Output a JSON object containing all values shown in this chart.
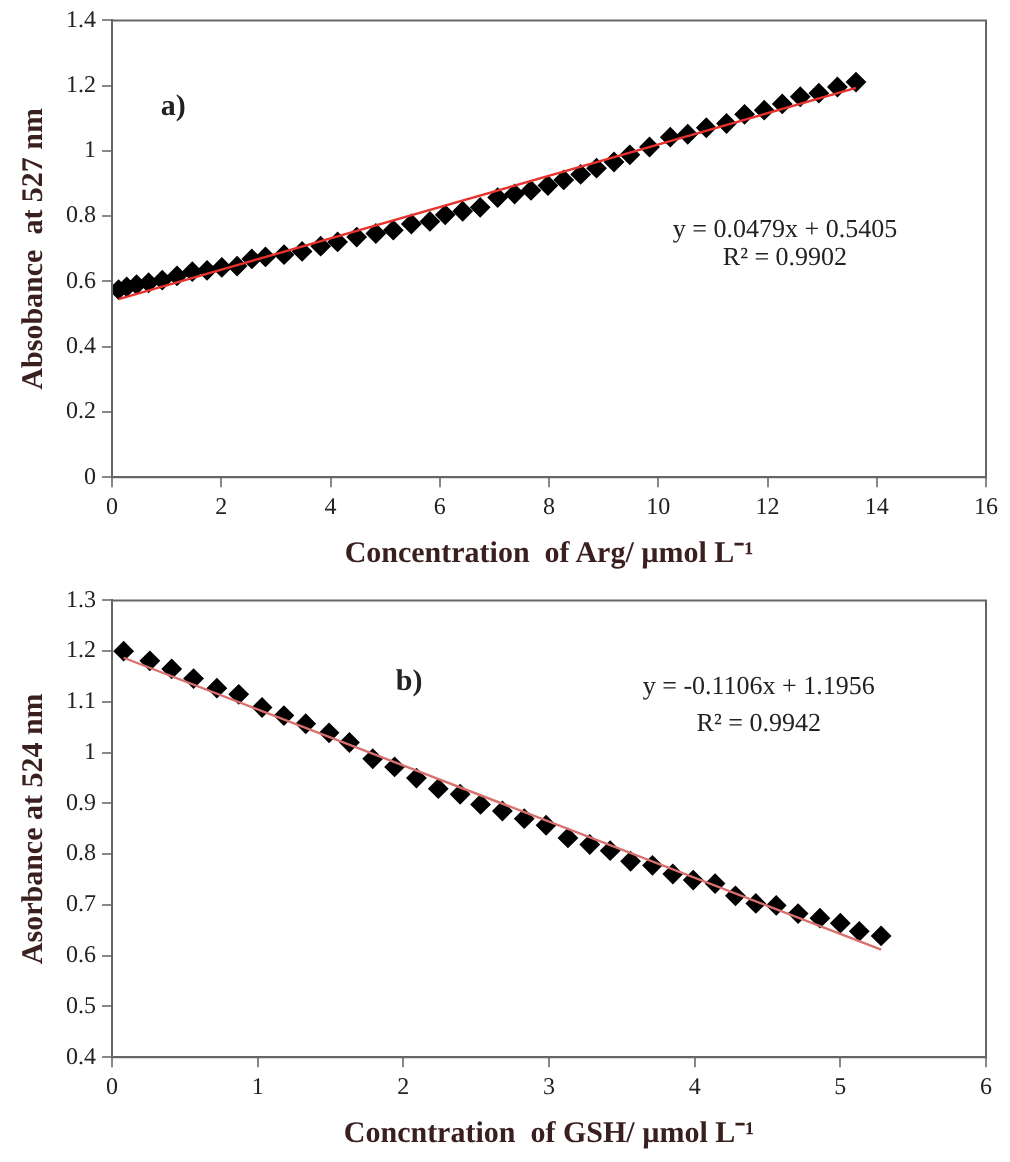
{
  "chart_data": [
    {
      "type": "scatter",
      "xlabel": "Concentration  of Arg/ µmol L⁻¹",
      "ylabel": "Absobance  at 527 nm",
      "annotations": [
        "a)",
        "y = 0.0479x + 0.5405",
        "R² = 0.9902"
      ],
      "xlim": [
        0,
        16
      ],
      "xticks": [
        0,
        2,
        4,
        6,
        8,
        10,
        12,
        14,
        16
      ],
      "ylim": [
        0,
        1.4
      ],
      "yticks": [
        0,
        0.2,
        0.4,
        0.6,
        0.8,
        1,
        1.2,
        1.4
      ],
      "legend": false,
      "marker": "diamond",
      "series": [
        {
          "color": "#000000",
          "x": [
            0.12,
            0.27,
            0.45,
            0.67,
            0.92,
            1.19,
            1.47,
            1.74,
            2.01,
            2.29,
            2.56,
            2.81,
            3.15,
            3.48,
            3.82,
            4.13,
            4.48,
            4.83,
            5.15,
            5.48,
            5.82,
            6.1,
            6.42,
            6.74,
            7.06,
            7.37,
            7.67,
            7.98,
            8.27,
            8.58,
            8.87,
            9.19,
            9.48,
            9.84,
            10.22,
            10.54,
            10.88,
            11.25,
            11.58,
            11.94,
            12.27,
            12.6,
            12.94,
            13.28,
            13.62
          ],
          "values": [
            0.575,
            0.583,
            0.59,
            0.596,
            0.604,
            0.617,
            0.63,
            0.634,
            0.643,
            0.647,
            0.669,
            0.675,
            0.682,
            0.692,
            0.708,
            0.721,
            0.736,
            0.747,
            0.757,
            0.776,
            0.784,
            0.804,
            0.815,
            0.827,
            0.857,
            0.868,
            0.879,
            0.894,
            0.911,
            0.928,
            0.947,
            0.966,
            0.988,
            1.012,
            1.042,
            1.051,
            1.071,
            1.084,
            1.112,
            1.125,
            1.144,
            1.166,
            1.177,
            1.196,
            1.211
          ]
        },
        {
          "type": "line",
          "color": "#e8322e",
          "marker": "none",
          "line_style": "solid",
          "x": [
            0.12,
            13.62
          ],
          "values": [
            0.546,
            1.193
          ]
        }
      ]
    },
    {
      "type": "scatter",
      "xlabel": "Concntration  of GSH/ µmol L⁻¹",
      "ylabel": "Asorbance at 524 nm",
      "annotations": [
        "b)",
        "y = -0.1106x + 1.1956",
        "R² = 0.9942"
      ],
      "xlim": [
        0,
        6
      ],
      "xticks": [
        0,
        1,
        2,
        3,
        4,
        5,
        6
      ],
      "ylim": [
        0.4,
        1.3
      ],
      "yticks": [
        0.4,
        0.5,
        0.6,
        0.7,
        0.8,
        0.9,
        1,
        1.1,
        1.2,
        1.3
      ],
      "legend": false,
      "marker": "diamond",
      "series": [
        {
          "color": "#000000",
          "x": [
            0.08,
            0.26,
            0.41,
            0.56,
            0.72,
            0.87,
            1.03,
            1.18,
            1.33,
            1.49,
            1.63,
            1.79,
            1.94,
            2.09,
            2.24,
            2.39,
            2.53,
            2.68,
            2.83,
            2.98,
            3.13,
            3.28,
            3.42,
            3.56,
            3.71,
            3.85,
            3.99,
            4.14,
            4.28,
            4.42,
            4.56,
            4.71,
            4.86,
            5,
            5.13,
            5.28
          ],
          "values": [
            1.2,
            1.181,
            1.165,
            1.146,
            1.127,
            1.115,
            1.089,
            1.073,
            1.057,
            1.039,
            1.02,
            0.988,
            0.972,
            0.95,
            0.929,
            0.918,
            0.898,
            0.885,
            0.87,
            0.857,
            0.832,
            0.819,
            0.807,
            0.786,
            0.778,
            0.761,
            0.749,
            0.742,
            0.718,
            0.703,
            0.699,
            0.683,
            0.674,
            0.664,
            0.648,
            0.639
          ]
        },
        {
          "type": "line",
          "color": "#d9706e",
          "marker": "none",
          "line_style": "solid",
          "x": [
            0.08,
            5.28
          ],
          "values": [
            1.187,
            0.612
          ]
        }
      ]
    }
  ]
}
